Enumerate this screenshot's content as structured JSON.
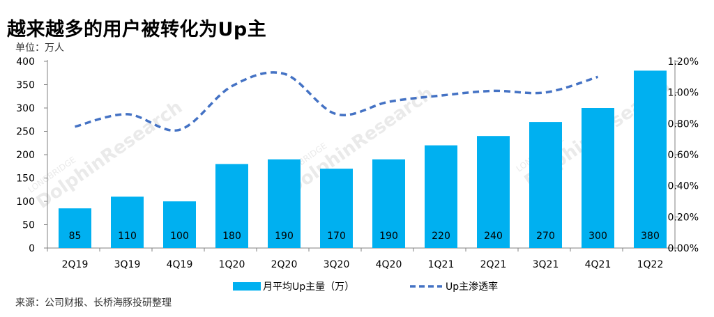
{
  "title": "越来越多的用户被转化为Up主",
  "unit_label": "单位：万人",
  "source": "来源：公司财报、长桥海豚投研整理",
  "watermark": {
    "brand_small": "LONGBRIDGE",
    "brand_large": "DolphinResearch"
  },
  "colors": {
    "bar": "#00B0F0",
    "line": "#4472C4",
    "axis": "#808080",
    "text": "#000000"
  },
  "chart_data": {
    "type": "bar",
    "categories": [
      "2Q19",
      "3Q19",
      "4Q19",
      "1Q20",
      "2Q20",
      "3Q20",
      "4Q20",
      "1Q21",
      "2Q21",
      "3Q21",
      "4Q21",
      "1Q22"
    ],
    "series": [
      {
        "name": "月平均Up主量（万）",
        "type": "bar",
        "axis": "left",
        "values": [
          85,
          110,
          100,
          180,
          190,
          170,
          190,
          220,
          240,
          270,
          300,
          380
        ],
        "data_labels": [
          "85",
          "110",
          "100",
          "180",
          "190",
          "170",
          "190",
          "220",
          "240",
          "270",
          "300",
          "380"
        ]
      },
      {
        "name": "Up主渗透率",
        "type": "line",
        "style": "dashed",
        "smooth": true,
        "axis": "right",
        "values": [
          0.78,
          0.86,
          0.76,
          1.04,
          1.12,
          0.86,
          0.94,
          0.98,
          1.01,
          1.0,
          1.1,
          null
        ]
      }
    ],
    "y_left": {
      "ylim": [
        0,
        400
      ],
      "ticks": [
        0,
        50,
        100,
        150,
        200,
        250,
        300,
        350,
        400
      ],
      "tick_labels": [
        "0",
        "50",
        "100",
        "150",
        "200",
        "250",
        "300",
        "350",
        "400"
      ]
    },
    "y_right": {
      "ylim": [
        0,
        1.2
      ],
      "ticks": [
        0,
        0.2,
        0.4,
        0.6,
        0.8,
        1.0,
        1.2
      ],
      "tick_labels": [
        "0.00%",
        "0.20%",
        "0.40%",
        "0.60%",
        "0.80%",
        "1.00%",
        "1.20%"
      ]
    },
    "legend": [
      {
        "label": "月平均Up主量（万）",
        "kind": "bar"
      },
      {
        "label": "Up主渗透率",
        "kind": "dashed-line"
      }
    ],
    "legend_position": "bottom"
  }
}
